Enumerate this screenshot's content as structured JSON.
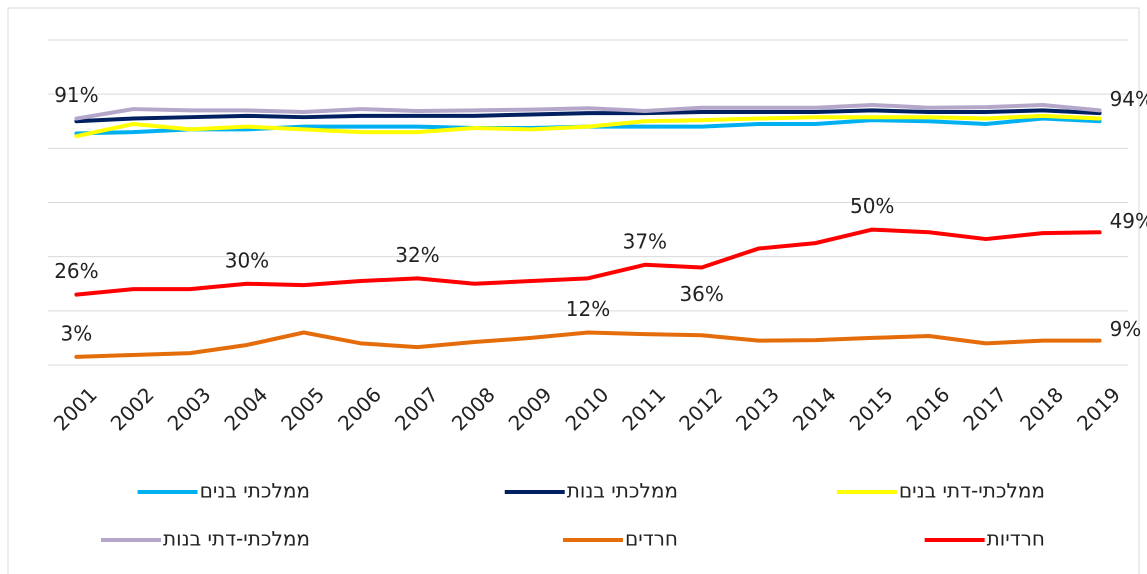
{
  "chart_data": {
    "type": "line",
    "categories": [
      "2001",
      "2002",
      "2003",
      "2004",
      "2005",
      "2006",
      "2007",
      "2008",
      "2009",
      "2010",
      "2011",
      "2012",
      "2013",
      "2014",
      "2015",
      "2016",
      "2017",
      "2018",
      "2019"
    ],
    "ylim": [
      0,
      120
    ],
    "yticks": [
      0,
      20,
      40,
      60,
      80,
      100,
      120
    ],
    "grid": true,
    "legend": "bottom",
    "series": [
      {
        "name": "ממלכתי בנים",
        "color": "#00b0f0",
        "values": [
          85.5,
          86,
          87,
          87,
          88,
          88,
          88,
          87.5,
          87.5,
          88,
          88,
          88,
          89,
          89,
          90.4,
          90,
          89,
          91,
          90
        ]
      },
      {
        "name": "ממלכתי בנות",
        "color": "#002060",
        "values": [
          90,
          91,
          91.5,
          92,
          91.5,
          92,
          92,
          92,
          92.5,
          93,
          93,
          93.4,
          93.4,
          93.4,
          94,
          93.4,
          93.4,
          94,
          93
        ]
      },
      {
        "name": "ממלכתי-דתי  בנים",
        "color": "#ffff00",
        "values": [
          84.5,
          89,
          87,
          88,
          87,
          86,
          86,
          87.5,
          87,
          88,
          90,
          90.4,
          91,
          91.5,
          91.5,
          91.5,
          91,
          92,
          91
        ]
      },
      {
        "name": "ממלכתי-דתי  בנות",
        "color": "#b4a7c9",
        "values": [
          91,
          94.5,
          94,
          94,
          93.4,
          94.5,
          93.8,
          94,
          94.3,
          94.8,
          93.8,
          95,
          95,
          95,
          96,
          95,
          95.2,
          96,
          94
        ],
        "value_labels": [
          "91%",
          null,
          null,
          null,
          null,
          null,
          null,
          null,
          null,
          null,
          null,
          null,
          null,
          null,
          null,
          null,
          null,
          null,
          "94%"
        ]
      },
      {
        "name": "חרדים",
        "color": "#e46c0a",
        "values": [
          3,
          3.7,
          4.4,
          7.4,
          12,
          8,
          6.6,
          8.5,
          10,
          12,
          11.4,
          11,
          9,
          9.2,
          10,
          10.7,
          8,
          9,
          9
        ],
        "value_labels": [
          "3%",
          null,
          null,
          null,
          null,
          null,
          null,
          null,
          null,
          "12%",
          null,
          null,
          null,
          null,
          null,
          null,
          null,
          null,
          "9%"
        ]
      },
      {
        "name": "חרדיות",
        "color": "#ff0000",
        "values": [
          26,
          28,
          28,
          30,
          29.5,
          31,
          32,
          30,
          31,
          32,
          37,
          36,
          43,
          45,
          50,
          49,
          46.5,
          48.7,
          49
        ],
        "value_labels": [
          "26%",
          null,
          null,
          "30%",
          null,
          null,
          "32%",
          null,
          null,
          null,
          "37%",
          "36%",
          null,
          null,
          "50%",
          null,
          null,
          null,
          "49%"
        ]
      }
    ]
  }
}
